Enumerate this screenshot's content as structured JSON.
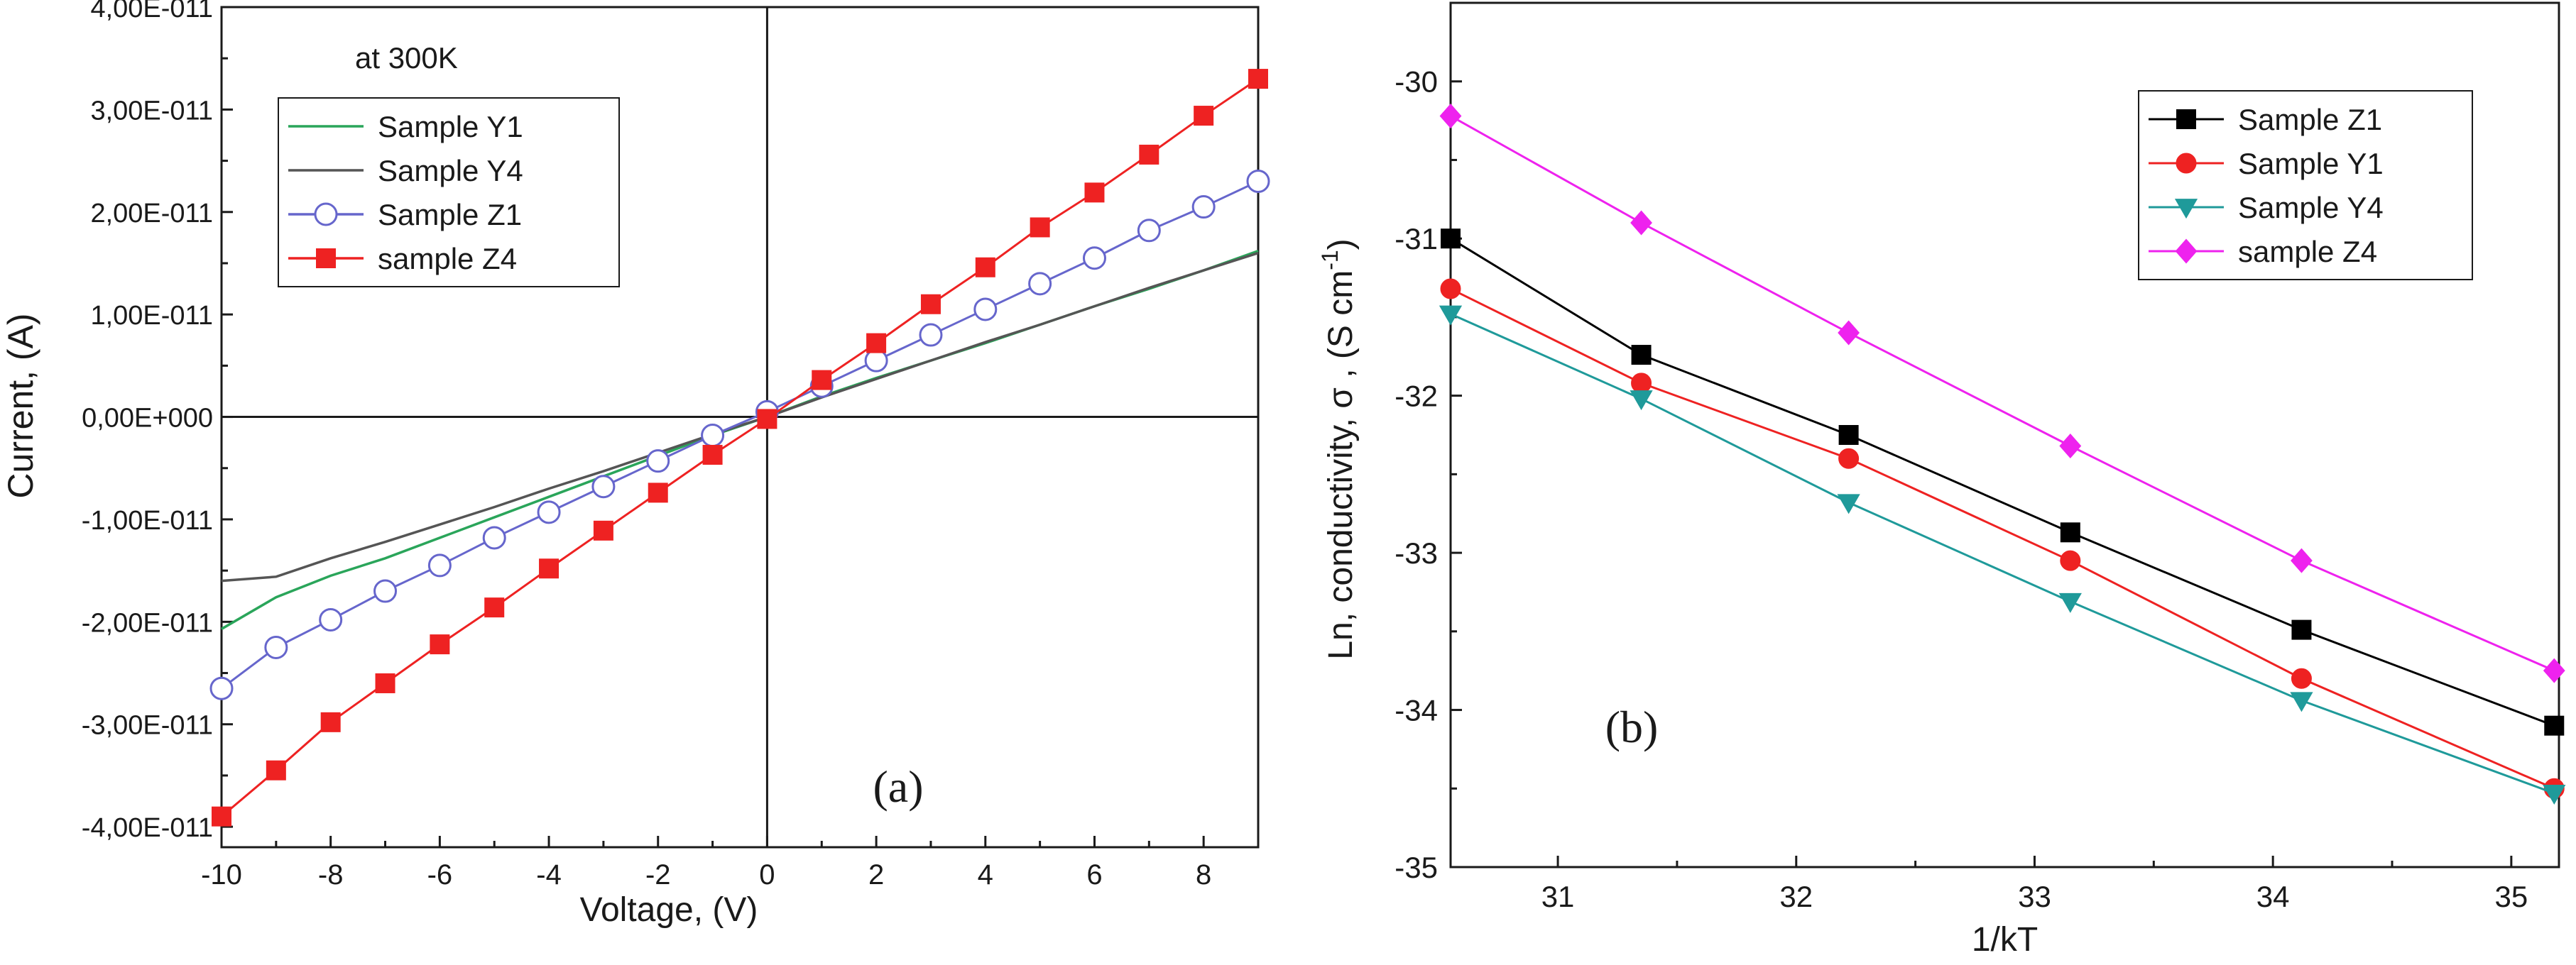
{
  "chart_data": [
    {
      "type": "line",
      "panel_label": "(a)",
      "title": "",
      "xlabel": "Voltage, (V)",
      "ylabel": "Current, (A)",
      "xlim": [
        -10,
        9
      ],
      "ylim": [
        -4.2e-11,
        4e-11
      ],
      "xticks": [
        -10,
        -8,
        -6,
        -4,
        -2,
        0,
        2,
        4,
        6,
        8
      ],
      "xtick_labels": [
        "-10",
        "-8",
        "-6",
        "-4",
        "-2",
        "0",
        "2",
        "4",
        "6",
        "8"
      ],
      "yticks": [
        4e-11,
        3e-11,
        2e-11,
        1e-11,
        0,
        -1e-11,
        -2e-11,
        -3e-11,
        -4e-11
      ],
      "ytick_labels": [
        "4,00E-011",
        "3,00E-011",
        "2,00E-011",
        "1,00E-011",
        "0,00E+000",
        "-1,00E-011",
        "-2,00E-011",
        "-3,00E-011",
        "-4,00E-011"
      ],
      "annotation": "at 300K",
      "grid": false,
      "zero_lines": true,
      "legend_position": "top-left",
      "series": [
        {
          "name": "Sample Y1",
          "color": "#2aa55a",
          "marker": "none",
          "x": [
            -10,
            -9,
            -8,
            -7,
            -6,
            -5,
            -4,
            -3,
            -2,
            -1,
            0,
            1,
            2,
            3,
            4,
            5,
            6,
            7,
            8,
            9
          ],
          "y": [
            -2.07e-11,
            -1.76e-11,
            -1.55e-11,
            -1.38e-11,
            -1.18e-11,
            -9.8e-12,
            -7.8e-12,
            -5.8e-12,
            -3.8e-12,
            -1.8e-12,
            0.0,
            2e-12,
            3.8e-12,
            5.5e-12,
            7.2e-12,
            9e-12,
            1.08e-11,
            1.25e-11,
            1.43e-11,
            1.62e-11
          ]
        },
        {
          "name": "Sample Y4",
          "color": "#555555",
          "marker": "none",
          "x": [
            -10,
            -9,
            -8,
            -7,
            -6,
            -5,
            -4,
            -3,
            -2,
            -1,
            0,
            1,
            2,
            3,
            4,
            5,
            6,
            7,
            8,
            9
          ],
          "y": [
            -1.6e-11,
            -1.56e-11,
            -1.38e-11,
            -1.22e-11,
            -1.05e-11,
            -8.8e-12,
            -7e-12,
            -5.3e-12,
            -3.5e-12,
            -1.7e-12,
            0.0,
            1.9e-12,
            3.7e-12,
            5.5e-12,
            7.3e-12,
            9e-12,
            1.08e-11,
            1.26e-11,
            1.43e-11,
            1.6e-11
          ]
        },
        {
          "name": "Sample Z1",
          "color": "#6666cc",
          "marker": "open-circle",
          "x": [
            -10,
            -9,
            -8,
            -7,
            -6,
            -5,
            -4,
            -3,
            -2,
            -1,
            0,
            1,
            2,
            3,
            4,
            5,
            6,
            7,
            8,
            9
          ],
          "y": [
            -2.65e-11,
            -2.25e-11,
            -1.98e-11,
            -1.7e-11,
            -1.45e-11,
            -1.18e-11,
            -9.3e-12,
            -6.8e-12,
            -4.3e-12,
            -1.8e-12,
            5e-13,
            3e-12,
            5.5e-12,
            8e-12,
            1.05e-11,
            1.3e-11,
            1.55e-11,
            1.82e-11,
            2.05e-11,
            2.3e-11
          ]
        },
        {
          "name": "sample Z4",
          "color": "#ee2222",
          "marker": "filled-square",
          "x": [
            -10,
            -9,
            -8,
            -7,
            -6,
            -5,
            -4,
            -3,
            -2,
            -1,
            0,
            1,
            2,
            3,
            4,
            5,
            6,
            7,
            8,
            9
          ],
          "y": [
            -3.9e-11,
            -3.45e-11,
            -2.98e-11,
            -2.6e-11,
            -2.22e-11,
            -1.86e-11,
            -1.48e-11,
            -1.11e-11,
            -7.4e-12,
            -3.7e-12,
            -2e-13,
            3.6e-12,
            7.2e-12,
            1.1e-11,
            1.46e-11,
            1.85e-11,
            2.19e-11,
            2.56e-11,
            2.94e-11,
            3.3e-11
          ]
        }
      ]
    },
    {
      "type": "line",
      "panel_label": "(b)",
      "title": "",
      "xlabel": "1/kT",
      "ylabel_parts": [
        "Ln, conductivity, σ , (S cm",
        "-1",
        ")"
      ],
      "xlim": [
        30.55,
        35.2
      ],
      "ylim": [
        -35,
        -29.5
      ],
      "xticks": [
        31,
        32,
        33,
        34,
        35
      ],
      "xtick_labels": [
        "31",
        "32",
        "33",
        "34",
        "35"
      ],
      "yticks": [
        -30,
        -31,
        -32,
        -33,
        -34,
        -35
      ],
      "ytick_labels": [
        "-30",
        "-31",
        "-32",
        "-33",
        "-34",
        "-35"
      ],
      "grid": false,
      "legend_position": "top-right",
      "series": [
        {
          "name": "Sample Z1",
          "color": "#000000",
          "marker": "filled-square",
          "x": [
            30.55,
            31.35,
            32.22,
            33.15,
            34.12,
            35.18
          ],
          "y": [
            -31.0,
            -31.74,
            -32.25,
            -32.87,
            -33.49,
            -34.1
          ]
        },
        {
          "name": "Sample Y1",
          "color": "#ee2222",
          "marker": "filled-circle",
          "x": [
            30.55,
            31.35,
            32.22,
            33.15,
            34.12,
            35.18
          ],
          "y": [
            -31.32,
            -31.92,
            -32.4,
            -33.05,
            -33.8,
            -34.5
          ]
        },
        {
          "name": "Sample Y4",
          "color": "#1f9a9a",
          "marker": "filled-triangle-down",
          "x": [
            30.55,
            31.35,
            32.22,
            33.15,
            34.12,
            35.18
          ],
          "y": [
            -31.48,
            -32.02,
            -32.68,
            -33.31,
            -33.94,
            -34.53
          ]
        },
        {
          "name": "sample Z4",
          "color": "#ee22ee",
          "marker": "filled-diamond",
          "x": [
            30.55,
            31.35,
            32.22,
            33.15,
            34.12,
            35.18
          ],
          "y": [
            -30.22,
            -30.9,
            -31.6,
            -32.32,
            -33.05,
            -33.75
          ]
        }
      ]
    }
  ]
}
